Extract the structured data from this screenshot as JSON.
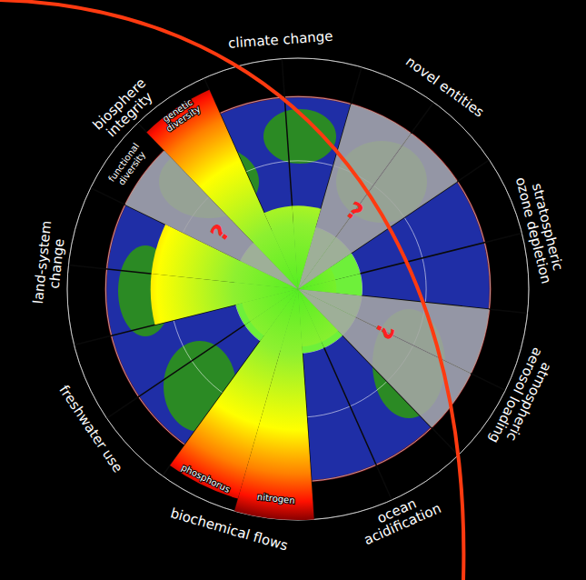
{
  "chart_data": {
    "type": "polar_bar",
    "categories": [
      "functional diversity",
      "genetic diversity",
      "climate change",
      "novel entities",
      "stratospheric ozone depletion",
      "atmospheric aerosol loading",
      "ocean acidification",
      "nitrogen",
      "phosphorus",
      "freshwater use",
      "land-system change"
    ],
    "values": [
      null,
      3.4,
      1.3,
      null,
      0.6,
      null,
      0.9,
      3.6,
      3.4,
      0.9,
      2.3
    ],
    "value_labels": [
      "?",
      null,
      null,
      "?",
      null,
      "?",
      null,
      null,
      null,
      null,
      null
    ],
    "groups": [
      {
        "label": "biosphere integrity",
        "members": [
          "functional diversity",
          "genetic diversity"
        ]
      },
      {
        "label": "biochemical flows",
        "members": [
          "nitrogen",
          "phosphorus"
        ]
      }
    ],
    "safe_limit": 1,
    "ylim": [
      0,
      3.6
    ],
    "yticks": [
      0,
      1,
      2,
      3
    ],
    "grid": true,
    "tick_labels": false
  }
}
